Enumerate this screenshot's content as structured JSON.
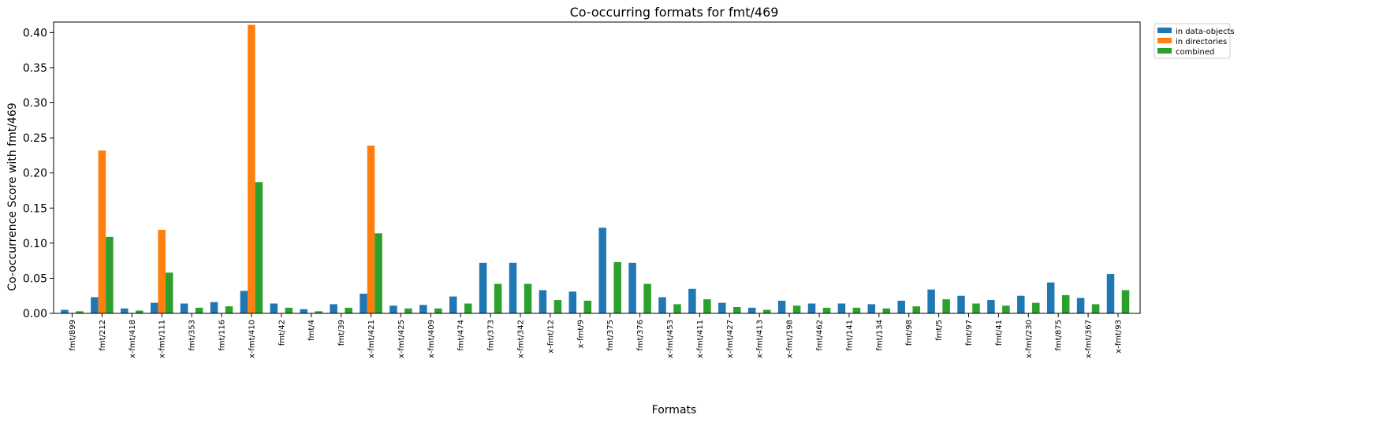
{
  "chart_data": {
    "type": "bar",
    "title": "Co-occurring formats for fmt/469",
    "xlabel": "Formats",
    "ylabel": "Co-occurrence Score with fmt/469",
    "ylim": [
      0,
      0.415
    ],
    "yticks": [
      0.0,
      0.05,
      0.1,
      0.15,
      0.2,
      0.25,
      0.3,
      0.35,
      0.4
    ],
    "ytick_labels": [
      "0.00",
      "0.05",
      "0.10",
      "0.15",
      "0.20",
      "0.25",
      "0.30",
      "0.35",
      "0.40"
    ],
    "grid": false,
    "legend_position": "outside top-right",
    "categories": [
      "fmt/899",
      "fmt/212",
      "x-fmt/418",
      "x-fmt/111",
      "fmt/353",
      "fmt/116",
      "x-fmt/410",
      "fmt/42",
      "fmt/4",
      "fmt/39",
      "x-fmt/421",
      "x-fmt/425",
      "x-fmt/409",
      "fmt/474",
      "fmt/373",
      "x-fmt/342",
      "x-fmt/12",
      "x-fmt/9",
      "fmt/375",
      "fmt/376",
      "x-fmt/453",
      "x-fmt/411",
      "x-fmt/427",
      "x-fmt/413",
      "x-fmt/198",
      "fmt/462",
      "fmt/141",
      "fmt/134",
      "fmt/98",
      "fmt/5",
      "fmt/97",
      "fmt/41",
      "x-fmt/230",
      "fmt/875",
      "x-fmt/367",
      "x-fmt/93"
    ],
    "series": [
      {
        "name": "in data-objects",
        "color": "#1f77b4",
        "values": [
          0.005,
          0.023,
          0.007,
          0.015,
          0.014,
          0.016,
          0.032,
          0.014,
          0.006,
          0.013,
          0.028,
          0.011,
          0.012,
          0.024,
          0.072,
          0.072,
          0.033,
          0.031,
          0.122,
          0.072,
          0.023,
          0.035,
          0.015,
          0.008,
          0.018,
          0.014,
          0.014,
          0.013,
          0.018,
          0.034,
          0.025,
          0.019,
          0.025,
          0.044,
          0.022,
          0.056
        ]
      },
      {
        "name": "in directories",
        "color": "#ff7f0e",
        "values": [
          0,
          0.232,
          0,
          0.119,
          0,
          0,
          0.411,
          0,
          0,
          0,
          0.239,
          0,
          0,
          0,
          0,
          0,
          0,
          0,
          0,
          0,
          0,
          0,
          0,
          0,
          0,
          0,
          0,
          0,
          0,
          0,
          0,
          0,
          0,
          0,
          0,
          0
        ]
      },
      {
        "name": "combined",
        "color": "#2ca02c",
        "values": [
          0.003,
          0.109,
          0.004,
          0.058,
          0.008,
          0.01,
          0.187,
          0.008,
          0.003,
          0.008,
          0.114,
          0.007,
          0.007,
          0.014,
          0.042,
          0.042,
          0.019,
          0.018,
          0.073,
          0.042,
          0.013,
          0.02,
          0.009,
          0.005,
          0.011,
          0.008,
          0.008,
          0.007,
          0.01,
          0.02,
          0.014,
          0.011,
          0.015,
          0.026,
          0.013,
          0.033
        ]
      }
    ]
  }
}
